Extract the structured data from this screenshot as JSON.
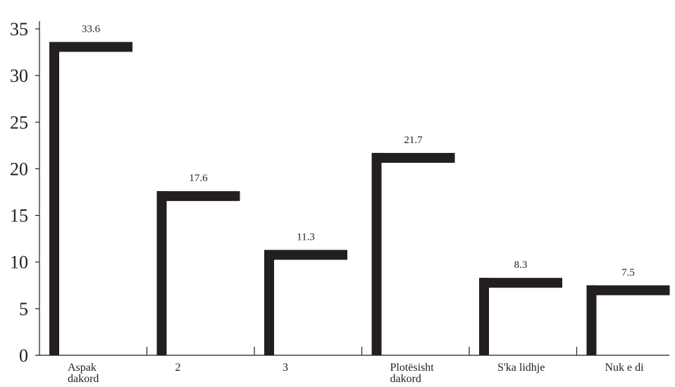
{
  "chart_data": {
    "type": "bar",
    "title": "",
    "xlabel": "",
    "ylabel": "",
    "ylim": [
      0,
      35
    ],
    "yticks": [
      0,
      5,
      10,
      15,
      20,
      25,
      30,
      35
    ],
    "ytick_labels": [
      "0",
      "5",
      "10",
      "15",
      "20",
      "25",
      "30",
      "35"
    ],
    "categories": [
      [
        "Aspak",
        "dakord"
      ],
      [
        "2"
      ],
      [
        "3"
      ],
      [
        "Plotësisht",
        "dakord"
      ],
      [
        "S'ka lidhje"
      ],
      [
        "Nuk e di"
      ]
    ],
    "values": [
      33.6,
      17.6,
      11.3,
      21.7,
      8.3,
      7.5
    ],
    "value_labels": [
      "33.6",
      "17.6",
      "11.3",
      "21.7",
      "8.3",
      "7.5"
    ],
    "grid": false,
    "legend": "none",
    "bar_color": "#231f20",
    "axis_color": "#231f20"
  }
}
